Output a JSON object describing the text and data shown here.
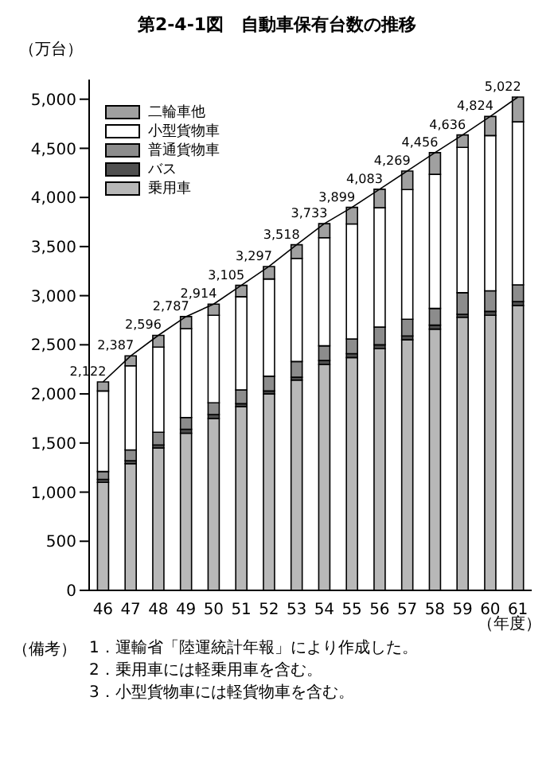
{
  "chart_data": {
    "type": "bar",
    "stacked": true,
    "title": "第2-4-1図　自動車保有台数の推移",
    "ylabel": "（万台）",
    "xlabel": "（年度）",
    "categories": [
      "46",
      "47",
      "48",
      "49",
      "50",
      "51",
      "52",
      "53",
      "54",
      "55",
      "56",
      "57",
      "58",
      "59",
      "60",
      "61"
    ],
    "series": [
      {
        "name": "乗用車",
        "color": "#b8b8b8",
        "values": [
          1100,
          1290,
          1450,
          1600,
          1750,
          1870,
          2000,
          2140,
          2300,
          2370,
          2460,
          2550,
          2660,
          2780,
          2800,
          2900
        ]
      },
      {
        "name": "バス",
        "color": "#505050",
        "values": [
          30,
          30,
          30,
          40,
          40,
          30,
          30,
          30,
          40,
          40,
          40,
          40,
          40,
          30,
          40,
          40
        ]
      },
      {
        "name": "普通貨物車",
        "color": "#8c8c8c",
        "values": [
          80,
          110,
          130,
          120,
          120,
          140,
          150,
          160,
          150,
          150,
          180,
          170,
          170,
          220,
          210,
          170
        ]
      },
      {
        "name": "小型貨物車",
        "color": "#ffffff",
        "values": [
          820,
          856,
          866,
          905,
          890,
          950,
          990,
          1050,
          1100,
          1170,
          1215,
          1320,
          1365,
          1480,
          1580,
          1660
        ]
      },
      {
        "name": "二輪車他",
        "color": "#a0a0a0",
        "values": [
          92,
          101,
          120,
          122,
          114,
          115,
          127,
          138,
          143,
          169,
          188,
          189,
          221,
          126,
          194,
          252
        ]
      },
      {
        "type": "line",
        "color": "#000000",
        "values": [
          2122,
          2387,
          2596,
          2787,
          2914,
          3105,
          3297,
          3518,
          3733,
          3899,
          4083,
          4269,
          4456,
          4636,
          4824,
          5022
        ]
      }
    ],
    "totals": [
      "2,122",
      "2,387",
      "2,596",
      "2,787",
      "2,914",
      "3,105",
      "3,297",
      "3,518",
      "3,733",
      "3,899",
      "4,083",
      "4,269",
      "4,456",
      "4,636",
      "4,824",
      "5,022"
    ],
    "ylim": [
      0,
      5200
    ],
    "yticks": [
      0,
      500,
      {
        "value": 1000,
        "label": "1,000"
      },
      {
        "value": 1500,
        "label": "1,500"
      },
      {
        "value": 2000,
        "label": "2,000"
      },
      {
        "value": 2500,
        "label": "2,500"
      },
      {
        "value": 3000,
        "label": "3,000"
      },
      {
        "value": 3500,
        "label": "3,500"
      },
      {
        "value": 4000,
        "label": "4,000"
      },
      {
        "value": 4500,
        "label": "4,500"
      },
      {
        "value": 5000,
        "label": "5,000"
      }
    ],
    "grid": false,
    "legend": "top left",
    "annotations": [
      "（備考）",
      "1．運輸省「陸運統計年報」により作成した。",
      "2．乗用車には軽乗用車を含む。",
      "3．小型貨物車には軽貨物車を含む。"
    ]
  }
}
